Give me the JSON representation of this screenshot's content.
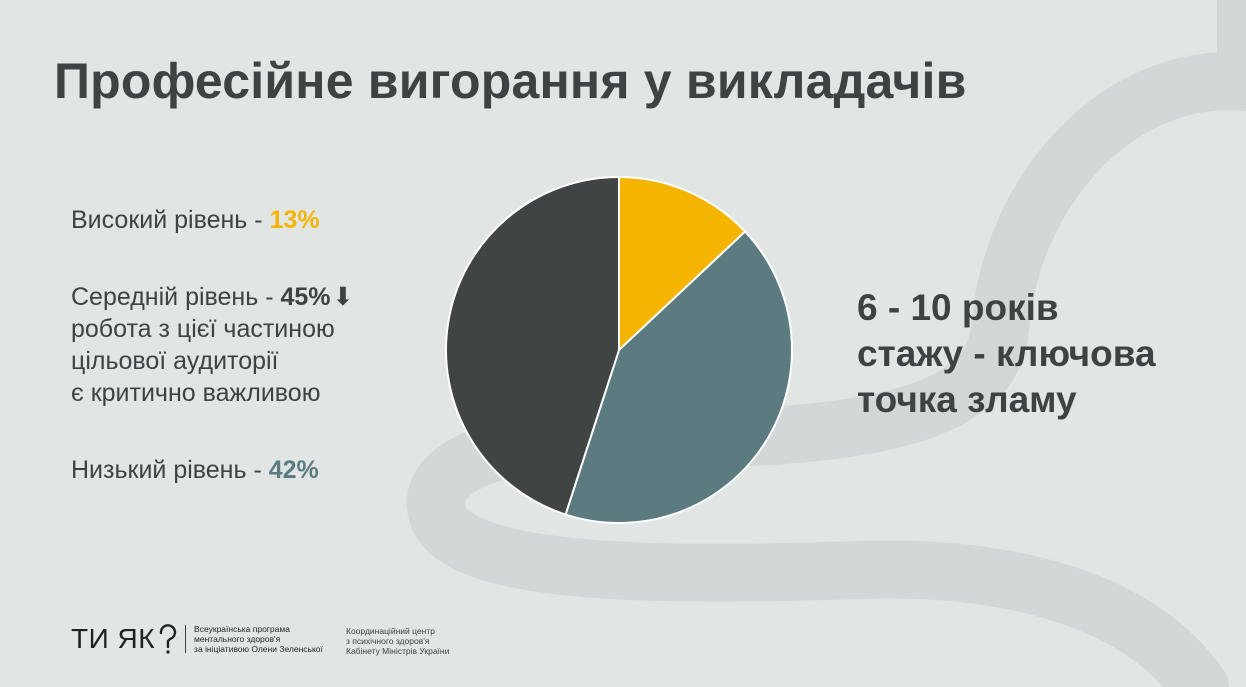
{
  "slide": {
    "title": "Професійне вигорання у викладачів",
    "callout": "6 - 10 років\nстажу - ключова\nточка зламу"
  },
  "legend": {
    "high": {
      "label": "Високий рівень - ",
      "value": "13%",
      "color": "#f5b400"
    },
    "medium": {
      "label": "Середній рівень - ",
      "value": "45%",
      "arrow": "⬇",
      "note": "робота з цієї частиною\nцільової аудиторії\nє критично важливою",
      "color": "#3e4242"
    },
    "low": {
      "label": "Низький рівень - ",
      "value": "42%",
      "color": "#5c7b80"
    }
  },
  "chart_data": {
    "type": "pie",
    "categories": [
      "Високий рівень",
      "Низький рівень",
      "Середній рівень"
    ],
    "values": [
      13,
      42,
      45
    ],
    "colors": [
      "#f5b400",
      "#5c7b80",
      "#404444"
    ],
    "title": ""
  },
  "footer": {
    "brand_name": "ТИ ЯК",
    "brand_description": "Всеукраїнська програма\nментального здоров'я\nза ініціативою Олени Зеленської",
    "coordination": "Координаційний центр\nз психічного здоров'я\nКабінету Міністрів України"
  }
}
